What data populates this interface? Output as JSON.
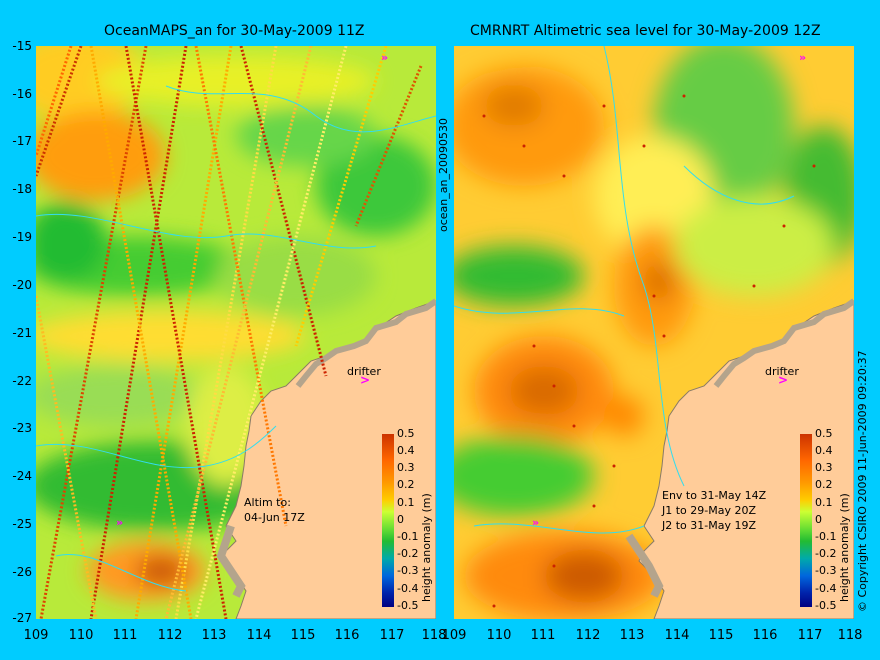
{
  "left_panel": {
    "title": "OceanMAPS_an for 30-May-2009 11Z",
    "annotation_line1": "Altim to:",
    "annotation_line2": "04-Jun 17Z",
    "drifter_label": "drifter"
  },
  "right_panel": {
    "title": "CMRNRT Altimetric sea level  for 30-May-2009 12Z",
    "annotation_line1": "Env to 31-May 14Z",
    "annotation_line2": "J1 to 29-May 20Z",
    "annotation_line3": "J2 to 31-May 19Z",
    "drifter_label": "drifter"
  },
  "center_vertical_label": "ocean_an_20090530",
  "right_vertical_label": "© Copyright CSIRO 2009   11-Jun-2009 09:20:37",
  "colorbar": {
    "label": "height anomaly (m)",
    "ticks": [
      "0.5",
      "0.4",
      "0.3",
      "0.2",
      "0.1",
      "0",
      "-0.1",
      "-0.2",
      "-0.3",
      "-0.4",
      "-0.5"
    ]
  },
  "y_ticks": [
    "-15",
    "-16",
    "-17",
    "-18",
    "-19",
    "-20",
    "-21",
    "-22",
    "-23",
    "-24",
    "-25",
    "-26",
    "-27"
  ],
  "left_x_ticks": [
    "109",
    "110",
    "111",
    "112",
    "113",
    "114",
    "115",
    "116",
    "117",
    "118"
  ],
  "right_x_ticks": [
    "109",
    "110",
    "111",
    "112",
    "113",
    "114",
    "115",
    "116",
    "117",
    "118"
  ],
  "colors": {
    "background": "#00ccff",
    "land": "#ffcc99",
    "land_gray": "#b4a48c",
    "positive": "#ff9900",
    "negative": "#33cc33",
    "drifter_marker": "#ff00ff"
  }
}
